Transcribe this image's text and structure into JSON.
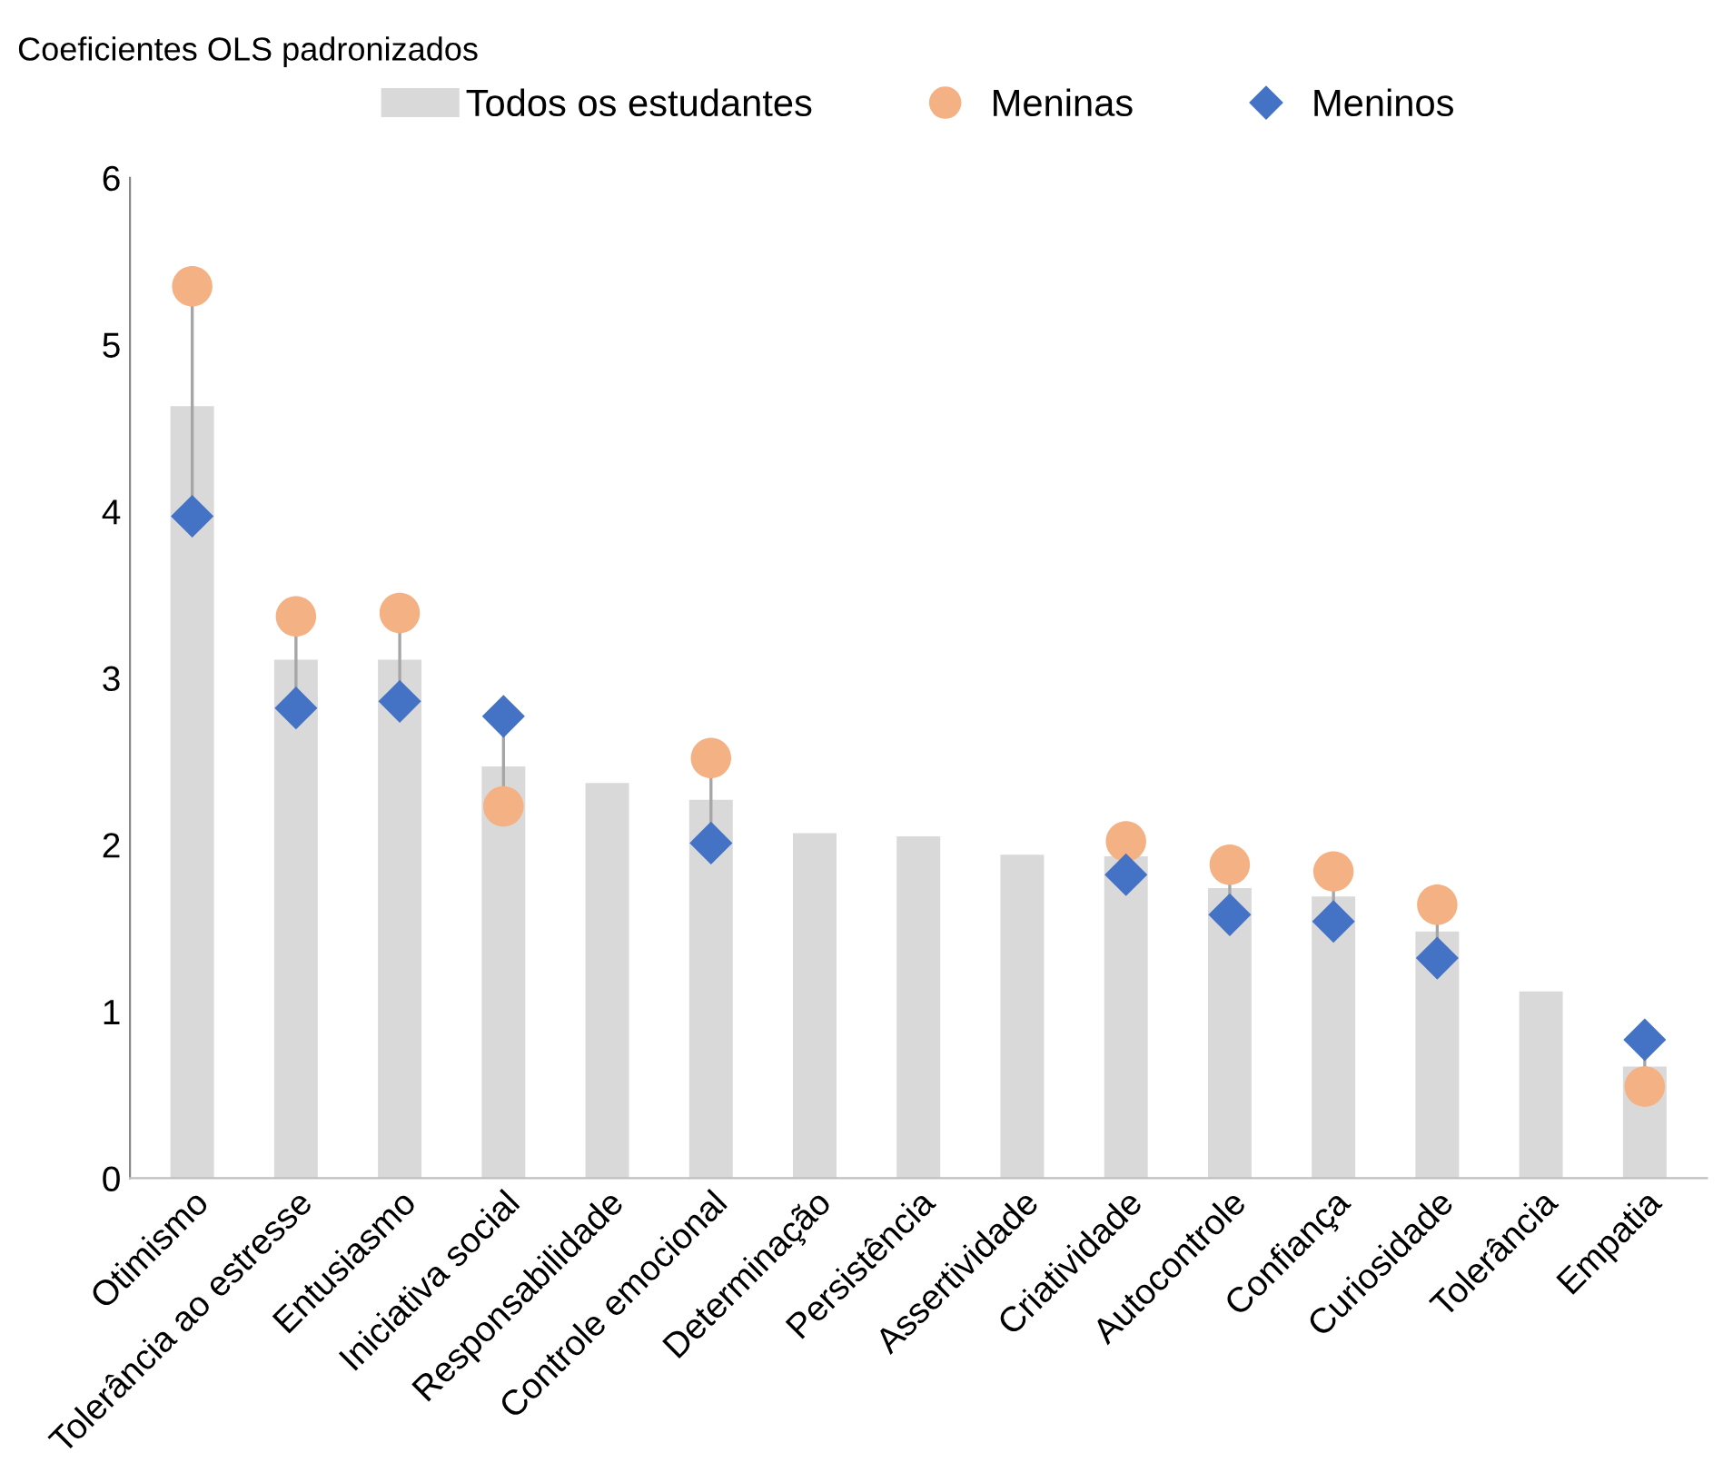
{
  "chart_data": {
    "type": "bar",
    "ylabel": "Coeficientes OLS padronizados",
    "categories": [
      "Otimismo",
      "Tolerância ao estresse",
      "Entusiasmo",
      "Iniciativa social",
      "Responsabilidade",
      "Controle emocional",
      "Determinação",
      "Persistência",
      "Assertividade",
      "Criatividade",
      "Autocontrole",
      "Confiança",
      "Curiosidade",
      "Tolerância",
      "Empatia"
    ],
    "series": [
      {
        "name": "Todos os estudantes",
        "color": "#d9d9d9",
        "values": [
          4.63,
          3.11,
          3.11,
          2.47,
          2.37,
          2.27,
          2.07,
          2.05,
          1.94,
          1.93,
          1.74,
          1.69,
          1.48,
          1.12,
          0.67
        ]
      },
      {
        "name": "Meninas",
        "type": "scatter",
        "marker": "circle",
        "color": "#f4b183",
        "values": [
          5.35,
          3.37,
          3.39,
          2.23,
          null,
          2.52,
          null,
          null,
          null,
          2.02,
          1.88,
          1.84,
          1.64,
          null,
          0.55
        ]
      },
      {
        "name": "Meninos",
        "type": "scatter",
        "marker": "diamond",
        "color": "#4472c4",
        "values": [
          3.97,
          2.82,
          2.86,
          2.77,
          null,
          2.01,
          null,
          null,
          null,
          1.82,
          1.58,
          1.54,
          1.32,
          null,
          0.83
        ]
      }
    ],
    "ylim": [
      0,
      6
    ],
    "yticks": [
      0,
      1,
      2,
      3,
      4,
      5,
      6
    ],
    "grid": false,
    "legend": "top"
  }
}
